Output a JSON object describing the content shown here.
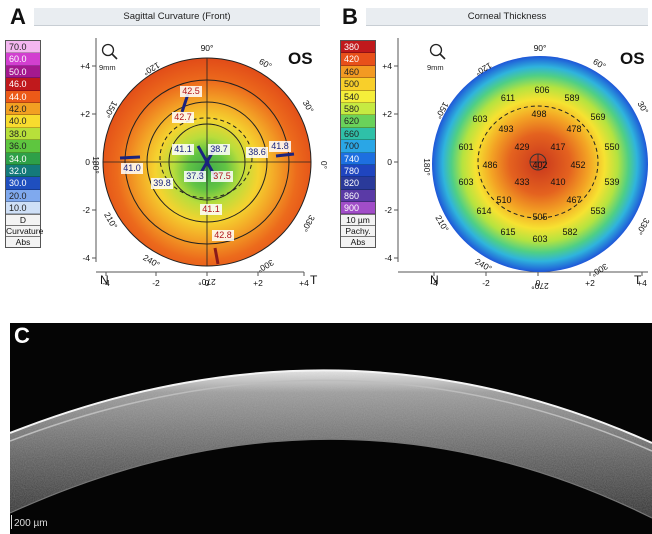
{
  "panels": {
    "a": {
      "letter": "A",
      "title": "Sagittal Curvature (Front)",
      "eye": "OS",
      "zoom_label": "9mm",
      "legend": {
        "values": [
          "70.0",
          "60.0",
          "50.0",
          "46.0",
          "44.0",
          "42.0",
          "40.0",
          "38.0",
          "36.0",
          "34.0",
          "32.0",
          "30.0",
          "20.0",
          "10.0"
        ],
        "colors": [
          "#f4b7f0",
          "#d23fd0",
          "#a4198f",
          "#c0191c",
          "#ec5a18",
          "#f2a022",
          "#f8dc2e",
          "#b8e03a",
          "#5ec63f",
          "#2ea048",
          "#147a7a",
          "#1f4fbf",
          "#7fa9ee",
          "#cfe0f7"
        ],
        "text_colors": [
          "#222",
          "#fff",
          "#fff",
          "#fff",
          "#fff",
          "#222",
          "#222",
          "#222",
          "#222",
          "#fff",
          "#fff",
          "#fff",
          "#222",
          "#222"
        ],
        "unit": "D",
        "foot1": "Curvature",
        "foot2": "Abs"
      },
      "angles": [
        "90°",
        "60°",
        "30°",
        "0°",
        "330°",
        "300°",
        "270°",
        "240°",
        "210°",
        "180°",
        "150°",
        "120°"
      ],
      "nasal": "N",
      "temporal": "T",
      "y_ticks": [
        "+4",
        "+2",
        "0",
        "-2",
        "-4"
      ],
      "x_ticks": [
        "-4",
        "-2",
        "0",
        "+2",
        "+4"
      ],
      "readings": [
        "42.5",
        "42.7",
        "41.1",
        "38.7",
        "38.6",
        "41.8",
        "41.0",
        "39.8",
        "37.3",
        "37.5",
        "41.1",
        "42.8"
      ]
    },
    "b": {
      "letter": "B",
      "title": "Corneal Thickness",
      "eye": "OS",
      "zoom_label": "9mm",
      "legend": {
        "values": [
          "380",
          "420",
          "460",
          "500",
          "540",
          "580",
          "620",
          "660",
          "700",
          "740",
          "780",
          "820",
          "860",
          "900"
        ],
        "colors": [
          "#c0191c",
          "#e8501a",
          "#f39a22",
          "#f8cf2a",
          "#f5ee3a",
          "#c6ea42",
          "#6ad25a",
          "#2fc0a8",
          "#2aa6e6",
          "#1d6fe0",
          "#1f45bf",
          "#2a3a9a",
          "#5a3aa6",
          "#a14dc8"
        ],
        "text_colors": [
          "#fff",
          "#fff",
          "#222",
          "#222",
          "#222",
          "#222",
          "#222",
          "#222",
          "#222",
          "#fff",
          "#fff",
          "#fff",
          "#fff",
          "#fff"
        ],
        "unit": "10 µm",
        "foot1": "Pachy.",
        "foot2": "Abs"
      },
      "angles": [
        "90°",
        "60°",
        "30°",
        "0°",
        "330°",
        "300°",
        "270°",
        "240°",
        "210°",
        "180°",
        "150°",
        "120°"
      ],
      "nasal": "N",
      "temporal": "T",
      "y_ticks": [
        "+4",
        "+2",
        "0",
        "-2",
        "-4"
      ],
      "x_ticks": [
        "-4",
        "-2",
        "0",
        "+2",
        "+4"
      ],
      "readings": [
        "606",
        "589",
        "611",
        "569",
        "603",
        "498",
        "478",
        "493",
        "601",
        "429",
        "417",
        "550",
        "486",
        "402",
        "452",
        "603",
        "433",
        "410",
        "539",
        "510",
        "467",
        "614",
        "505",
        "553",
        "615",
        "582",
        "603"
      ]
    },
    "c": {
      "letter": "C",
      "scale": "200 µm"
    }
  }
}
